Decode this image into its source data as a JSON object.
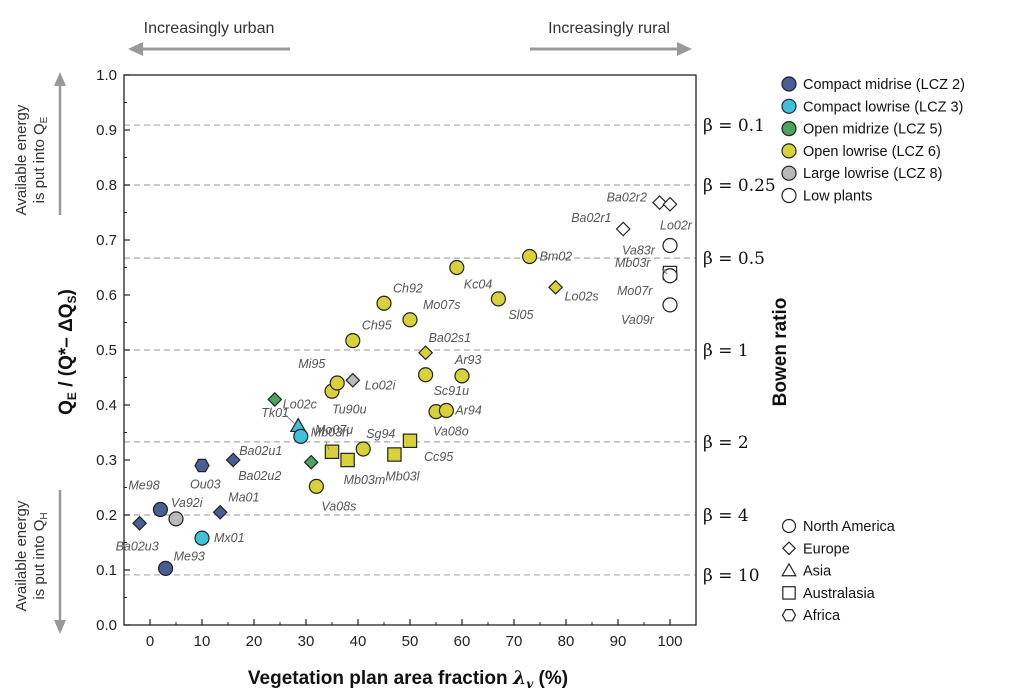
{
  "header": {
    "left_arrow_label": "Increasingly urban",
    "right_arrow_label": "Increasingly rural"
  },
  "side_notes": {
    "top_line1": "Available energy",
    "top_line2": "is put into Q",
    "top_sub": "E",
    "bottom_line1": "Available energy",
    "bottom_line2": "is put into Q",
    "bottom_sub": "H"
  },
  "chart_data": {
    "type": "scatter",
    "xlabel": "Vegetation plan area fraction λv (%)",
    "ylabel": "QE / (Q* − ΔQS)",
    "y2label": "Bowen ratio",
    "xlim": [
      -5,
      105
    ],
    "ylim": [
      0,
      1.0
    ],
    "x_ticks": [
      0,
      10,
      20,
      30,
      40,
      50,
      60,
      70,
      80,
      90,
      100
    ],
    "y_ticks": [
      0.0,
      0.1,
      0.2,
      0.3,
      0.4,
      0.5,
      0.6,
      0.7,
      0.8,
      0.9,
      1.0
    ],
    "beta_lines": [
      {
        "label": "β = 0.1",
        "y": 0.909
      },
      {
        "label": "β = 0.25",
        "y": 0.8
      },
      {
        "label": "β = 0.5",
        "y": 0.667
      },
      {
        "label": "β = 1",
        "y": 0.5
      },
      {
        "label": "β = 2",
        "y": 0.333
      },
      {
        "label": "β = 4",
        "y": 0.2
      },
      {
        "label": "β = 10",
        "y": 0.091
      }
    ],
    "classes": [
      {
        "key": "lcz2",
        "name": "Compact midrise (LCZ 2)",
        "color": "#4a5e96"
      },
      {
        "key": "lcz3",
        "name": "Compact lowrise (LCZ 3)",
        "color": "#3fc1de"
      },
      {
        "key": "lcz5",
        "name": "Open midrize (LCZ 5)",
        "color": "#4ca35e"
      },
      {
        "key": "lcz6",
        "name": "Open lowrise (LCZ 6)",
        "color": "#d8d23a"
      },
      {
        "key": "lcz8",
        "name": "Large lowrise (LCZ 8)",
        "color": "#b9b9b9"
      },
      {
        "key": "plants",
        "name": "Low plants",
        "color": "#ffffff"
      }
    ],
    "regions": [
      {
        "key": "na",
        "name": "North America",
        "shape": "circle"
      },
      {
        "key": "eu",
        "name": "Europe",
        "shape": "diamond"
      },
      {
        "key": "as",
        "name": "Asia",
        "shape": "triangle"
      },
      {
        "key": "au",
        "name": "Australasia",
        "shape": "square"
      },
      {
        "key": "af",
        "name": "Africa",
        "shape": "hexagon"
      }
    ],
    "points": [
      {
        "label": "Ba02u3",
        "x": -2,
        "y": 0.185,
        "class": "lcz2",
        "region": "eu"
      },
      {
        "label": "Me98",
        "x": 2,
        "y": 0.21,
        "class": "lcz2",
        "region": "na"
      },
      {
        "label": "Me93",
        "x": 3,
        "y": 0.103,
        "class": "lcz2",
        "region": "na"
      },
      {
        "label": "Va92i",
        "x": 5,
        "y": 0.193,
        "class": "lcz8",
        "region": "na"
      },
      {
        "label": "Mx01",
        "x": 10,
        "y": 0.158,
        "class": "lcz3",
        "region": "na"
      },
      {
        "label": "Ou03",
        "x": 10,
        "y": 0.29,
        "class": "lcz2",
        "region": "af"
      },
      {
        "label": "Ma01",
        "x": 13.5,
        "y": 0.205,
        "class": "lcz2",
        "region": "eu"
      },
      {
        "label": "Ba02u1",
        "x": 16,
        "y": 0.3,
        "class": "lcz2",
        "region": "eu"
      },
      {
        "label": "Lo02c",
        "x": 24,
        "y": 0.41,
        "class": "lcz5",
        "region": "eu"
      },
      {
        "label": "Tk01",
        "x": 28.5,
        "y": 0.362,
        "class": "lcz3",
        "region": "as"
      },
      {
        "label": "Mb03h",
        "x": 29,
        "y": 0.343,
        "class": "lcz3",
        "region": "na"
      },
      {
        "label": "Ba02u2",
        "x": 31,
        "y": 0.296,
        "class": "lcz5",
        "region": "eu"
      },
      {
        "label": "Va08s",
        "x": 32,
        "y": 0.252,
        "class": "lcz6",
        "region": "na"
      },
      {
        "label": "Mo07u",
        "x": 35,
        "y": 0.315,
        "class": "lcz6",
        "region": "au"
      },
      {
        "label": "Tu90u",
        "x": 35,
        "y": 0.425,
        "class": "lcz6",
        "region": "na"
      },
      {
        "label": "Mi95",
        "x": 36,
        "y": 0.44,
        "class": "lcz6",
        "region": "na"
      },
      {
        "label": "Lo02i",
        "x": 39,
        "y": 0.445,
        "class": "lcz8",
        "region": "eu"
      },
      {
        "label": "Mb03m",
        "x": 38,
        "y": 0.3,
        "class": "lcz6",
        "region": "au"
      },
      {
        "label": "Sg94",
        "x": 41,
        "y": 0.32,
        "class": "lcz6",
        "region": "na"
      },
      {
        "label": "Ch95",
        "x": 39,
        "y": 0.517,
        "class": "lcz6",
        "region": "na"
      },
      {
        "label": "Ch92",
        "x": 45,
        "y": 0.585,
        "class": "lcz6",
        "region": "na"
      },
      {
        "label": "Mb03l",
        "x": 47,
        "y": 0.31,
        "class": "lcz6",
        "region": "au"
      },
      {
        "label": "Cc95",
        "x": 50,
        "y": 0.335,
        "class": "lcz6",
        "region": "au"
      },
      {
        "label": "Mo07s",
        "x": 50,
        "y": 0.555,
        "class": "lcz6",
        "region": "na"
      },
      {
        "label": "Ba02s1",
        "x": 53,
        "y": 0.495,
        "class": "lcz6",
        "region": "eu"
      },
      {
        "label": "Sc91u",
        "x": 53,
        "y": 0.455,
        "class": "lcz6",
        "region": "na"
      },
      {
        "label": "Ar93",
        "x": 60,
        "y": 0.453,
        "class": "lcz6",
        "region": "na"
      },
      {
        "label": "Va08o",
        "x": 55,
        "y": 0.388,
        "class": "lcz6",
        "region": "na"
      },
      {
        "label": "Ar94",
        "x": 57,
        "y": 0.39,
        "class": "lcz6",
        "region": "na"
      },
      {
        "label": "Kc04",
        "x": 59,
        "y": 0.65,
        "class": "lcz6",
        "region": "na"
      },
      {
        "label": "Sl05",
        "x": 67,
        "y": 0.593,
        "class": "lcz6",
        "region": "na"
      },
      {
        "label": "Bm02",
        "x": 73,
        "y": 0.67,
        "class": "lcz6",
        "region": "na"
      },
      {
        "label": "Lo02s",
        "x": 78,
        "y": 0.614,
        "class": "lcz6",
        "region": "eu"
      },
      {
        "label": "Ba02r1",
        "x": 91,
        "y": 0.72,
        "class": "plants",
        "region": "eu"
      },
      {
        "label": "Ba02r2",
        "x": 98,
        "y": 0.768,
        "class": "plants",
        "region": "eu"
      },
      {
        "label": "Lo02r",
        "x": 100,
        "y": 0.765,
        "class": "plants",
        "region": "eu"
      },
      {
        "label": "Va83r",
        "x": 100,
        "y": 0.69,
        "class": "plants",
        "region": "na"
      },
      {
        "label": "Mb03r",
        "x": 100,
        "y": 0.64,
        "class": "plants",
        "region": "au"
      },
      {
        "label": "Mo07r",
        "x": 100,
        "y": 0.635,
        "class": "plants",
        "region": "na"
      },
      {
        "label": "Va09r",
        "x": 100,
        "y": 0.582,
        "class": "plants",
        "region": "na"
      }
    ]
  }
}
